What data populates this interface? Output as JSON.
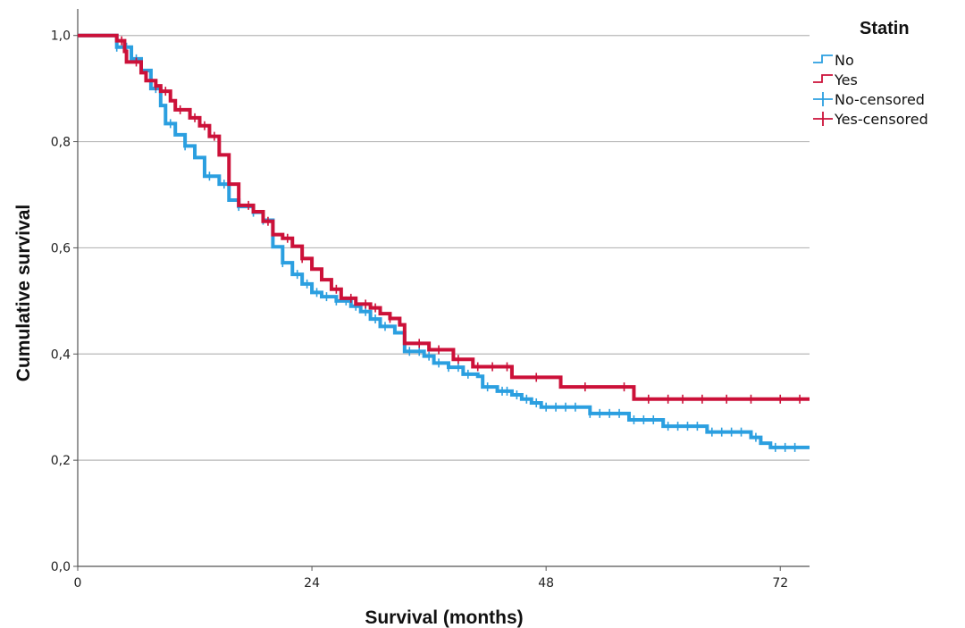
{
  "chart_data": {
    "type": "line",
    "subtype": "kaplan-meier step",
    "xlabel": "Survival (months)",
    "ylabel": "Cumulative survival",
    "xlim": [
      0,
      75
    ],
    "ylim": [
      0,
      1.05
    ],
    "xticks": [
      0,
      24,
      48,
      72
    ],
    "xtick_labels": [
      "0",
      "24",
      "48",
      "72"
    ],
    "yticks": [
      0,
      0.2,
      0.4,
      0.6,
      0.8,
      1.0
    ],
    "ytick_labels": [
      "0,0",
      "0,2",
      "0,4",
      "0,6",
      "0,8",
      "1,0"
    ],
    "grid": "horizontal",
    "legend": {
      "title": "Statin",
      "placement": "top-right outside plot",
      "entries": [
        "No",
        "Yes",
        "No-censored",
        "Yes-censored"
      ]
    },
    "series": [
      {
        "name": "No",
        "color": "#2b9fe0",
        "steps": [
          [
            0,
            1.0
          ],
          [
            4,
            0.978
          ],
          [
            5.5,
            0.956
          ],
          [
            6.5,
            0.934
          ],
          [
            7.5,
            0.9
          ],
          [
            8.5,
            0.868
          ],
          [
            9,
            0.834
          ],
          [
            10,
            0.813
          ],
          [
            11,
            0.792
          ],
          [
            12,
            0.77
          ],
          [
            13,
            0.735
          ],
          [
            14.5,
            0.72
          ],
          [
            15.5,
            0.69
          ],
          [
            16.5,
            0.678
          ],
          [
            18,
            0.667
          ],
          [
            19,
            0.652
          ],
          [
            20,
            0.602
          ],
          [
            21,
            0.572
          ],
          [
            22,
            0.55
          ],
          [
            23,
            0.532
          ],
          [
            24,
            0.516
          ],
          [
            25,
            0.508
          ],
          [
            26.5,
            0.5
          ],
          [
            28,
            0.49
          ],
          [
            29,
            0.48
          ],
          [
            30,
            0.466
          ],
          [
            31,
            0.452
          ],
          [
            32.5,
            0.44
          ],
          [
            33.5,
            0.405
          ],
          [
            35.5,
            0.396
          ],
          [
            36.5,
            0.383
          ],
          [
            38,
            0.375
          ],
          [
            39.5,
            0.362
          ],
          [
            41,
            0.358
          ],
          [
            41.5,
            0.338
          ],
          [
            43,
            0.33
          ],
          [
            44.5,
            0.323
          ],
          [
            45.5,
            0.315
          ],
          [
            46.5,
            0.308
          ],
          [
            47.5,
            0.3
          ],
          [
            52.5,
            0.288
          ],
          [
            56.5,
            0.276
          ],
          [
            60,
            0.264
          ],
          [
            64.5,
            0.253
          ],
          [
            69,
            0.243
          ],
          [
            70,
            0.232
          ],
          [
            71,
            0.224
          ],
          [
            75,
            0.224
          ]
        ],
        "censored": [
          4,
          5,
          6,
          8,
          9.5,
          11,
          13.5,
          15,
          16.5,
          18,
          19,
          21,
          22.5,
          23.5,
          24.5,
          25.5,
          26.5,
          27.5,
          28.5,
          29.5,
          30.5,
          31.5,
          34,
          35,
          36,
          37,
          38,
          39,
          40,
          42,
          43.5,
          44,
          45,
          46,
          47,
          48,
          49,
          50,
          51,
          52.5,
          53.5,
          54.5,
          55.5,
          57,
          58,
          59,
          60.5,
          61.5,
          62.5,
          63.5,
          65,
          66,
          67,
          68,
          69.5,
          71.5,
          72.5,
          73.5
        ]
      },
      {
        "name": "Yes",
        "color": "#cc1139",
        "steps": [
          [
            0,
            1.0
          ],
          [
            4,
            0.99
          ],
          [
            4.8,
            0.97
          ],
          [
            5,
            0.95
          ],
          [
            6.5,
            0.93
          ],
          [
            7,
            0.915
          ],
          [
            8,
            0.905
          ],
          [
            8.5,
            0.895
          ],
          [
            9.5,
            0.877
          ],
          [
            10,
            0.86
          ],
          [
            11.5,
            0.845
          ],
          [
            12.5,
            0.83
          ],
          [
            13.5,
            0.81
          ],
          [
            14.5,
            0.775
          ],
          [
            15.5,
            0.72
          ],
          [
            16.5,
            0.68
          ],
          [
            18,
            0.668
          ],
          [
            19,
            0.65
          ],
          [
            20,
            0.625
          ],
          [
            21,
            0.618
          ],
          [
            22,
            0.603
          ],
          [
            23,
            0.58
          ],
          [
            24,
            0.56
          ],
          [
            25,
            0.54
          ],
          [
            26,
            0.522
          ],
          [
            27,
            0.505
          ],
          [
            28.5,
            0.494
          ],
          [
            30,
            0.487
          ],
          [
            31,
            0.476
          ],
          [
            32,
            0.467
          ],
          [
            33,
            0.455
          ],
          [
            33.5,
            0.42
          ],
          [
            36,
            0.408
          ],
          [
            38.5,
            0.39
          ],
          [
            40.5,
            0.376
          ],
          [
            44.5,
            0.356
          ],
          [
            49.5,
            0.338
          ],
          [
            57,
            0.315
          ],
          [
            75,
            0.315
          ]
        ],
        "censored": [
          4.5,
          6,
          8,
          9,
          10.5,
          12,
          13,
          14,
          17.5,
          19.5,
          21.5,
          23,
          26.5,
          28,
          29.5,
          30.5,
          32,
          35,
          37,
          39,
          41,
          42.5,
          44,
          47,
          52,
          56,
          58.5,
          60.5,
          62,
          64,
          66.5,
          69,
          72,
          74
        ]
      }
    ]
  }
}
